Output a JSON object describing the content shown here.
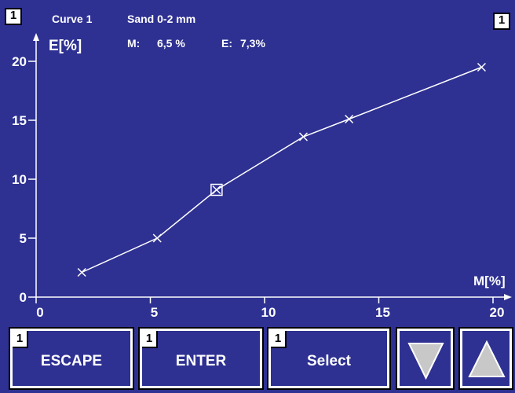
{
  "header": {
    "screen_number_left": "1",
    "screen_number_right": "1",
    "curve_label": "Curve 1",
    "material_label": "Sand 0-2 mm",
    "m_label": "M:",
    "m_value": "6,5 %",
    "e_label": "E:",
    "e_value": "7,3%"
  },
  "softkeys": [
    {
      "num": "1",
      "label": "ESCAPE"
    },
    {
      "num": "1",
      "label": "ENTER"
    },
    {
      "num": "1",
      "label": "Select"
    }
  ],
  "arrows": [
    {
      "icon": "triangle-down-icon"
    },
    {
      "icon": "triangle-up-icon"
    }
  ],
  "colors": {
    "background": "#2e3192",
    "foreground": "#ffffff",
    "arrow_fill": "#c8c8c8"
  },
  "chart_data": {
    "type": "line",
    "xlabel": "M[%]",
    "ylabel": "E[%]",
    "xlim": [
      0,
      20
    ],
    "ylim": [
      0,
      20
    ],
    "xticks": [
      "0",
      "5",
      "10",
      "15",
      "20"
    ],
    "yticks": [
      "0",
      "5",
      "10",
      "15",
      "20"
    ],
    "x": [
      2.0,
      5.3,
      7.9,
      11.7,
      13.7,
      19.5
    ],
    "y": [
      2.1,
      5.0,
      9.1,
      13.6,
      15.1,
      19.5
    ],
    "selected_index": 2,
    "marker": "x",
    "grid": false
  }
}
